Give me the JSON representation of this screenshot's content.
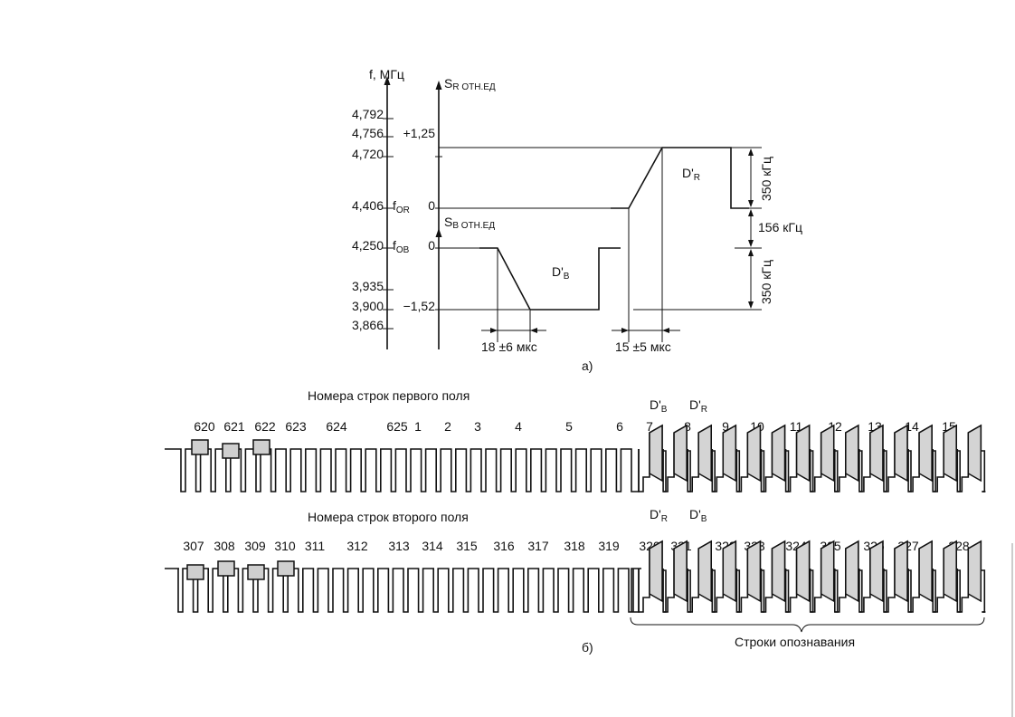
{
  "part_a": {
    "freq_axis_title": "f, МГц",
    "freq_ticks": [
      "4,792",
      "4,756",
      "4,720",
      "4,406",
      "4,250",
      "3,935",
      "3,900",
      "3,866"
    ],
    "f_or_label": "f",
    "f_or_sub": "OR",
    "f_ob_label": "f",
    "f_ob_sub": "OB",
    "sr_title": "S",
    "sr_title_sub": "R ОТН.ЕД",
    "sb_title": "S",
    "sb_title_sub": "B ОТН.ЕД",
    "sr_ticks": [
      "+1,25",
      "0"
    ],
    "sb_ticks": [
      "0",
      "−1,52"
    ],
    "dr_label": "D'",
    "dr_sub": "R",
    "db_label": "D'",
    "db_sub": "B",
    "dim_350_top": "350 кГц",
    "dim_156": "156 кГц",
    "dim_350_bottom": "350 кГц",
    "dim_18": "18 ±6 мкс",
    "dim_15": "15 ±5 мкс",
    "caption": "а)"
  },
  "part_b": {
    "field1_title": "Номера строк первого поля",
    "field2_title": "Номера строк второго поля",
    "field1_lines": [
      "620",
      "621",
      "622",
      "623",
      "624",
      "625",
      "1",
      "2",
      "3",
      "4",
      "5",
      "6",
      "7",
      "8",
      "9",
      "10",
      "11",
      "12",
      "13",
      "14",
      "15"
    ],
    "field2_lines": [
      "307",
      "308",
      "309",
      "310",
      "311",
      "312",
      "313",
      "314",
      "315",
      "316",
      "317",
      "318",
      "319",
      "320",
      "321",
      "322",
      "323",
      "324",
      "325",
      "326",
      "327",
      "328"
    ],
    "field1_burst_labels": [
      {
        "text": "D'",
        "sub": "B"
      },
      {
        "text": "D'",
        "sub": "R"
      }
    ],
    "field2_burst_labels": [
      {
        "text": "D'",
        "sub": "R"
      },
      {
        "text": "D'",
        "sub": "B"
      }
    ],
    "brace_label": "Строки опознавания",
    "caption": "б)"
  }
}
